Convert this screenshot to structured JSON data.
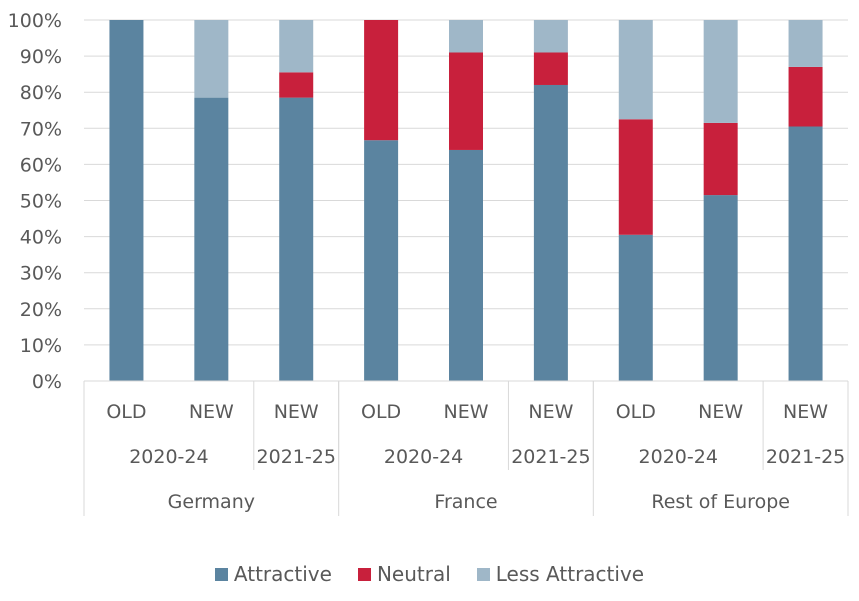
{
  "chart_data": {
    "type": "bar",
    "stacked": true,
    "percent": true,
    "ylim": [
      0,
      100
    ],
    "yticks": [
      "0%",
      "10%",
      "20%",
      "30%",
      "40%",
      "50%",
      "60%",
      "70%",
      "80%",
      "90%",
      "100%"
    ],
    "categories": [
      {
        "label": "OLD",
        "period": "2020-24",
        "region": "Germany"
      },
      {
        "label": "NEW",
        "period": "2020-24",
        "region": "Germany"
      },
      {
        "label": "NEW",
        "period": "2021-25",
        "region": "Germany"
      },
      {
        "label": "OLD",
        "period": "2020-24",
        "region": "France"
      },
      {
        "label": "NEW",
        "period": "2020-24",
        "region": "France"
      },
      {
        "label": "NEW",
        "period": "2021-25",
        "region": "France"
      },
      {
        "label": "OLD",
        "period": "2020-24",
        "region": "Rest of Europe"
      },
      {
        "label": "NEW",
        "period": "2020-24",
        "region": "Rest of Europe"
      },
      {
        "label": "NEW",
        "period": "2021-25",
        "region": "Rest of Europe"
      }
    ],
    "period_groups": [
      {
        "label": "2020-24",
        "span": [
          0,
          1
        ]
      },
      {
        "label": "2021-25",
        "span": [
          2,
          2
        ]
      },
      {
        "label": "2020-24",
        "span": [
          3,
          4
        ]
      },
      {
        "label": "2021-25",
        "span": [
          5,
          5
        ]
      },
      {
        "label": "2020-24",
        "span": [
          6,
          7
        ]
      },
      {
        "label": "2021-25",
        "span": [
          8,
          8
        ]
      }
    ],
    "region_groups": [
      {
        "label": "Germany",
        "span": [
          0,
          2
        ]
      },
      {
        "label": "France",
        "span": [
          3,
          5
        ]
      },
      {
        "label": "Rest of Europe",
        "span": [
          6,
          8
        ]
      }
    ],
    "series": [
      {
        "name": "Attractive",
        "color": "#5b84a0",
        "values": [
          100,
          78.5,
          78.5,
          66.7,
          64,
          82,
          40.5,
          51.5,
          70.5
        ]
      },
      {
        "name": "Neutral",
        "color": "#c8203c",
        "values": [
          0,
          0,
          7,
          33.3,
          27,
          9,
          32,
          20,
          16.5
        ]
      },
      {
        "name": "Less Attractive",
        "color": "#9fb7c8",
        "values": [
          0,
          21.5,
          14.5,
          0,
          9,
          9,
          27.5,
          28.5,
          13
        ]
      }
    ],
    "legend_position": "bottom",
    "grid": true
  }
}
